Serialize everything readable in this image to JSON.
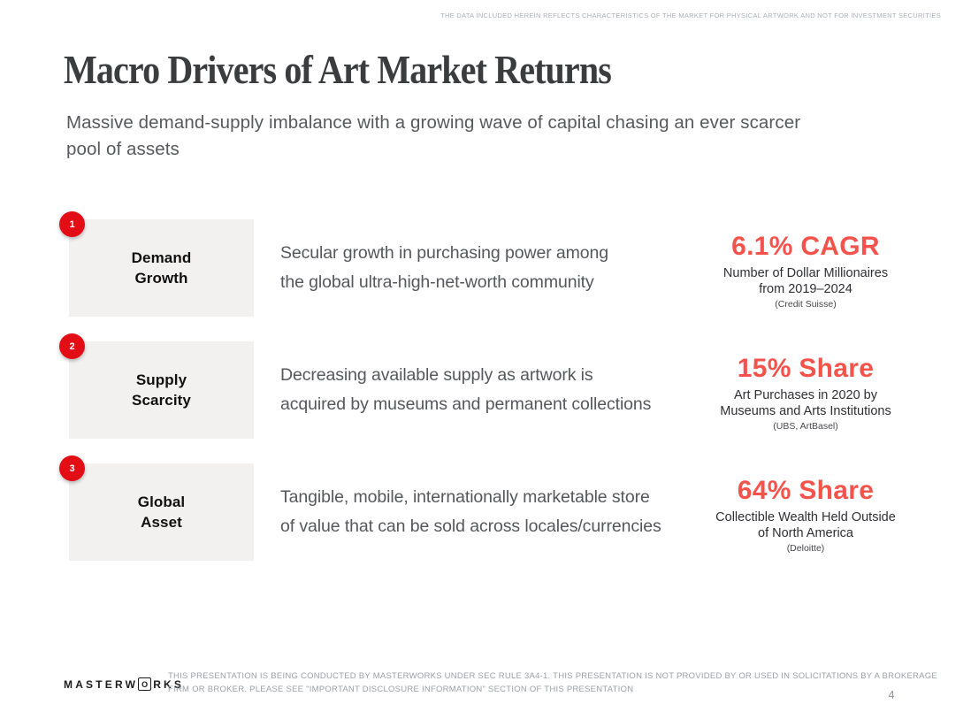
{
  "meta": {
    "top_disclaimer": "THE DATA INCLUDED HEREIN REFLECTS CHARACTERISTICS OF THE MARKET FOR PHYSICAL ARTWORK AND NOT FOR INVESTMENT SECURITIES",
    "page_number": "4"
  },
  "header": {
    "title": "Macro Drivers of Art Market Returns",
    "subtitle_lines": [
      "Massive demand-supply imbalance with a growing wave of capital chasing an ever scarcer",
      "pool of assets"
    ]
  },
  "drivers": [
    {
      "number": "1",
      "label": [
        "Demand",
        "Growth"
      ],
      "description": [
        "Secular growth in purchasing power among",
        "the global ultra-high-net-worth community"
      ],
      "stat": {
        "value": "6.1% CAGR",
        "description": [
          "Number of Dollar Millionaires",
          "from 2019–2024"
        ],
        "source": "(Credit Suisse)"
      }
    },
    {
      "number": "2",
      "label": [
        "Supply",
        "Scarcity"
      ],
      "description": [
        "Decreasing available supply as artwork is",
        "acquired by museums and permanent collections"
      ],
      "stat": {
        "value": "15% Share",
        "description": [
          "Art Purchases in 2020 by",
          "Museums and Arts Institutions"
        ],
        "source": "(UBS, ArtBasel)"
      }
    },
    {
      "number": "3",
      "label": [
        "Global",
        "Asset"
      ],
      "description": [
        "Tangible, mobile, internationally marketable store",
        "of value that can be sold across locales/currencies"
      ],
      "stat": {
        "value": "64% Share",
        "description": [
          "Collectible Wealth Held Outside",
          "of North America"
        ],
        "source": "(Deloitte)"
      }
    }
  ],
  "footer": {
    "logo": {
      "part1": "MASTERW",
      "boxed_letter": "O",
      "part2": "RKS"
    },
    "disclaimer_lines": [
      "THIS PRESENTATION  IS BEING CONDUCTED BY MASTERWORKS UNDER SEC RULE 3A4-1. THIS PRESENTATION  IS NOT PROVIDED BY OR USED IN SOLICITATIONS BY A BROKERAGE",
      "FIRM OR BROKER. PLEASE SEE \"IMPORTANT DISCLOSURE INFORMATION\" SECTION OF THIS PRESENTATION"
    ]
  },
  "colors": {
    "badge_red": "#e30d16",
    "stat_coral": "#f4534b",
    "box_gray": "#f2f1f0",
    "title_dark": "#3b3c3e",
    "body_gray": "#55575b",
    "footer_gray": "#9aa0a6"
  }
}
